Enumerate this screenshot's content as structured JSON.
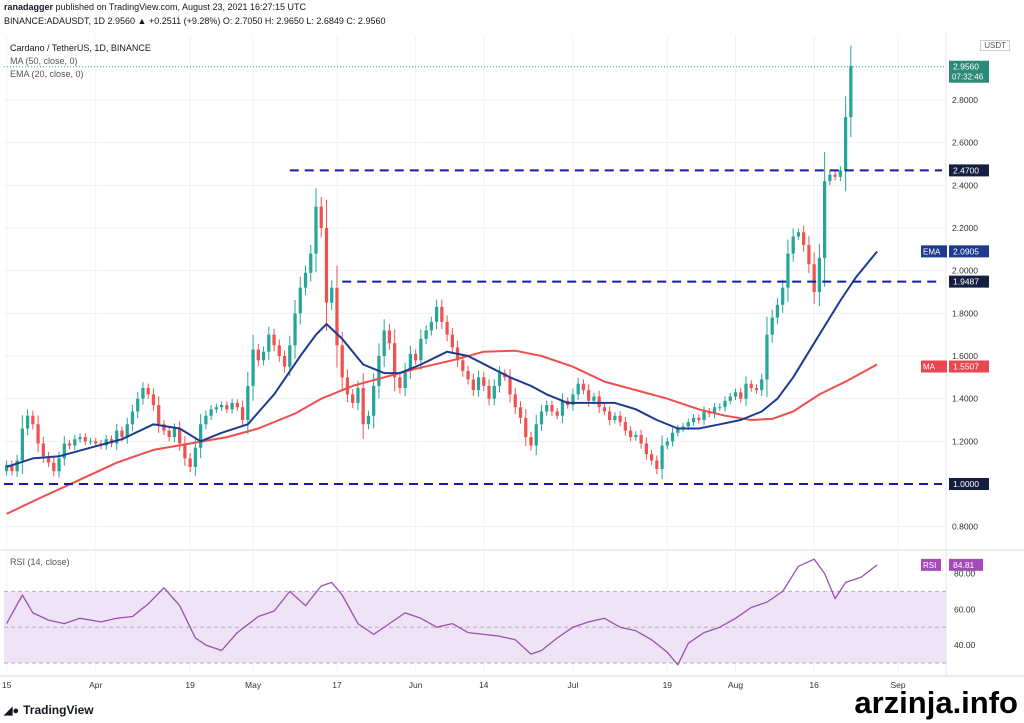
{
  "header": {
    "line1_user": "ranadagger",
    "line1_rest": " published on TradingView.com, August 23, 2021 16:27:15 UTC",
    "line2": "BINANCE:ADAUSDT, 1D  2.9560  ▲  +0.2511 (+9.28%)  O: 2.7050  H: 2.9650  L: 2.6849  C: 2.9560"
  },
  "legend": {
    "title": "Cardano / TetherUS, 1D, BINANCE",
    "ma": "MA (50, close, 0)",
    "ema": "EMA (20, close, 0)",
    "rsi": "RSI (14, close)"
  },
  "currency_label": "USDT",
  "footer": {
    "brand": "TradingView"
  },
  "watermark": "arzinja.info",
  "colors": {
    "up": "#26a69a",
    "down": "#ef5350",
    "ma": "#f04e4e",
    "ema": "#1d3a8f",
    "level": "#0f1fa8",
    "rsi": "#9c4fb3",
    "rsi_band": "#efe4f6"
  },
  "chart_data": [
    {
      "type": "candlestick",
      "title": "Cardano / TetherUS, 1D, BINANCE",
      "ylim": [
        0.7,
        3.1
      ],
      "y_ticks": [
        "0.8000",
        "1.0000",
        "1.2000",
        "1.4000",
        "1.6000",
        "1.8000",
        "2.0000",
        "2.2000",
        "2.4000",
        "2.6000",
        "2.8000"
      ],
      "y_tick_values": [
        0.8,
        1.0,
        1.2,
        1.4,
        1.6,
        1.8,
        2.0,
        2.2,
        2.4,
        2.6,
        2.8
      ],
      "x_ticks": [
        {
          "label": "15",
          "day": 0
        },
        {
          "label": "Apr",
          "day": 17
        },
        {
          "label": "19",
          "day": 35
        },
        {
          "label": "May",
          "day": 47
        },
        {
          "label": "17",
          "day": 63
        },
        {
          "label": "Jun",
          "day": 78
        },
        {
          "label": "14",
          "day": 91
        },
        {
          "label": "Jul",
          "day": 108
        },
        {
          "label": "19",
          "day": 126
        },
        {
          "label": "Aug",
          "day": 139
        },
        {
          "label": "16",
          "day": 154
        },
        {
          "label": "Sep",
          "day": 170
        }
      ],
      "x_range_days": [
        -0.5,
        178
      ],
      "closes": [
        1.09,
        1.06,
        1.11,
        1.26,
        1.32,
        1.28,
        1.19,
        1.13,
        1.1,
        1.06,
        1.12,
        1.19,
        1.18,
        1.21,
        1.22,
        1.2,
        1.2,
        1.19,
        1.18,
        1.21,
        1.19,
        1.25,
        1.22,
        1.28,
        1.34,
        1.4,
        1.45,
        1.42,
        1.37,
        1.28,
        1.25,
        1.22,
        1.26,
        1.19,
        1.12,
        1.08,
        1.17,
        1.28,
        1.32,
        1.35,
        1.36,
        1.37,
        1.35,
        1.38,
        1.36,
        1.3,
        1.46,
        1.63,
        1.58,
        1.62,
        1.7,
        1.65,
        1.6,
        1.55,
        1.65,
        1.8,
        1.92,
        1.99,
        2.08,
        2.3,
        2.2,
        1.85,
        1.92,
        1.65,
        1.5,
        1.42,
        1.38,
        1.45,
        1.28,
        1.32,
        1.46,
        1.6,
        1.72,
        1.66,
        1.5,
        1.45,
        1.53,
        1.61,
        1.58,
        1.68,
        1.72,
        1.76,
        1.83,
        1.76,
        1.7,
        1.64,
        1.58,
        1.53,
        1.49,
        1.44,
        1.5,
        1.46,
        1.4,
        1.46,
        1.52,
        1.5,
        1.42,
        1.36,
        1.31,
        1.22,
        1.18,
        1.28,
        1.34,
        1.37,
        1.34,
        1.32,
        1.39,
        1.37,
        1.42,
        1.47,
        1.44,
        1.39,
        1.41,
        1.36,
        1.34,
        1.3,
        1.32,
        1.29,
        1.25,
        1.22,
        1.23,
        1.19,
        1.14,
        1.11,
        1.07,
        1.18,
        1.2,
        1.24,
        1.26,
        1.27,
        1.29,
        1.31,
        1.3,
        1.34,
        1.33,
        1.36,
        1.36,
        1.39,
        1.41,
        1.43,
        1.4,
        1.47,
        1.45,
        1.44,
        1.49,
        1.7,
        1.78,
        1.84,
        1.92,
        2.08,
        2.16,
        2.18,
        2.12,
        2.03,
        1.9,
        2.06,
        2.42,
        2.45,
        2.44,
        2.47,
        2.72,
        2.96
      ],
      "ma": {
        "name": "MA",
        "last_value": "1.5507",
        "anchors": [
          [
            0,
            0.86
          ],
          [
            6,
            0.93
          ],
          [
            14,
            1.02
          ],
          [
            21,
            1.1
          ],
          [
            28,
            1.16
          ],
          [
            35,
            1.19
          ],
          [
            42,
            1.22
          ],
          [
            48,
            1.26
          ],
          [
            55,
            1.33
          ],
          [
            60,
            1.4
          ],
          [
            66,
            1.46
          ],
          [
            72,
            1.5
          ],
          [
            78,
            1.54
          ],
          [
            85,
            1.58
          ],
          [
            91,
            1.62
          ],
          [
            97,
            1.625
          ],
          [
            102,
            1.6
          ],
          [
            108,
            1.55
          ],
          [
            114,
            1.48
          ],
          [
            120,
            1.44
          ],
          [
            126,
            1.4
          ],
          [
            132,
            1.35
          ],
          [
            137,
            1.32
          ],
          [
            142,
            1.3
          ],
          [
            146,
            1.305
          ],
          [
            150,
            1.34
          ],
          [
            155,
            1.42
          ],
          [
            160,
            1.48
          ],
          [
            166,
            1.56
          ]
        ]
      },
      "ema": {
        "name": "EMA",
        "last_value": "2.0905",
        "anchors": [
          [
            0,
            1.08
          ],
          [
            5,
            1.12
          ],
          [
            10,
            1.13
          ],
          [
            16,
            1.17
          ],
          [
            22,
            1.21
          ],
          [
            28,
            1.28
          ],
          [
            33,
            1.26
          ],
          [
            37,
            1.2
          ],
          [
            41,
            1.24
          ],
          [
            46,
            1.28
          ],
          [
            51,
            1.42
          ],
          [
            56,
            1.6
          ],
          [
            59,
            1.7
          ],
          [
            61,
            1.75
          ],
          [
            64,
            1.68
          ],
          [
            68,
            1.56
          ],
          [
            72,
            1.52
          ],
          [
            75,
            1.52
          ],
          [
            79,
            1.56
          ],
          [
            84,
            1.62
          ],
          [
            88,
            1.6
          ],
          [
            92,
            1.55
          ],
          [
            96,
            1.5
          ],
          [
            100,
            1.46
          ],
          [
            103,
            1.42
          ],
          [
            107,
            1.38
          ],
          [
            112,
            1.38
          ],
          [
            116,
            1.38
          ],
          [
            120,
            1.35
          ],
          [
            124,
            1.3
          ],
          [
            128,
            1.26
          ],
          [
            132,
            1.26
          ],
          [
            136,
            1.28
          ],
          [
            140,
            1.3
          ],
          [
            144,
            1.34
          ],
          [
            147,
            1.4
          ],
          [
            150,
            1.5
          ],
          [
            153,
            1.62
          ],
          [
            156,
            1.74
          ],
          [
            159,
            1.86
          ],
          [
            162,
            1.97
          ],
          [
            166,
            2.09
          ]
        ]
      },
      "levels": [
        {
          "value": 2.47,
          "label": "2.4700",
          "from_day": 54
        },
        {
          "value": 1.9487,
          "label": "1.9487",
          "from_day": 64
        },
        {
          "value": 1.0,
          "label": "1.0000",
          "from_day": -0.5
        }
      ],
      "last_price": "2.9560",
      "countdown": "07:32:46"
    },
    {
      "type": "line",
      "name": "RSI (14, close)",
      "last_value": "84.81",
      "ylim": [
        25,
        92
      ],
      "band": [
        30,
        70
      ],
      "y_ticks": [
        "40.00",
        "60.00",
        "80.00"
      ],
      "y_tick_values": [
        40,
        60,
        80
      ],
      "anchors": [
        [
          0,
          52
        ],
        [
          3,
          68
        ],
        [
          5,
          58
        ],
        [
          8,
          54
        ],
        [
          11,
          52
        ],
        [
          14,
          55
        ],
        [
          18,
          53
        ],
        [
          21,
          55
        ],
        [
          24,
          56
        ],
        [
          27,
          63
        ],
        [
          30,
          72
        ],
        [
          33,
          62
        ],
        [
          36,
          44
        ],
        [
          38,
          40
        ],
        [
          41,
          37
        ],
        [
          44,
          47
        ],
        [
          48,
          56
        ],
        [
          51,
          59
        ],
        [
          54,
          70
        ],
        [
          57,
          62
        ],
        [
          60,
          73
        ],
        [
          62,
          75
        ],
        [
          64,
          68
        ],
        [
          67,
          52
        ],
        [
          70,
          46
        ],
        [
          73,
          52
        ],
        [
          76,
          58
        ],
        [
          79,
          55
        ],
        [
          82,
          50
        ],
        [
          85,
          52
        ],
        [
          88,
          47
        ],
        [
          91,
          46
        ],
        [
          94,
          45
        ],
        [
          97,
          43
        ],
        [
          100,
          35
        ],
        [
          102,
          37
        ],
        [
          105,
          44
        ],
        [
          108,
          50
        ],
        [
          111,
          53
        ],
        [
          114,
          55
        ],
        [
          117,
          50
        ],
        [
          120,
          48
        ],
        [
          123,
          43
        ],
        [
          126,
          36
        ],
        [
          128,
          29
        ],
        [
          130,
          41
        ],
        [
          133,
          47
        ],
        [
          136,
          50
        ],
        [
          139,
          55
        ],
        [
          142,
          61
        ],
        [
          145,
          64
        ],
        [
          148,
          70
        ],
        [
          151,
          84
        ],
        [
          154,
          88
        ],
        [
          156,
          80
        ],
        [
          158,
          66
        ],
        [
          160,
          75
        ],
        [
          163,
          78
        ],
        [
          166,
          84.8
        ]
      ]
    }
  ]
}
